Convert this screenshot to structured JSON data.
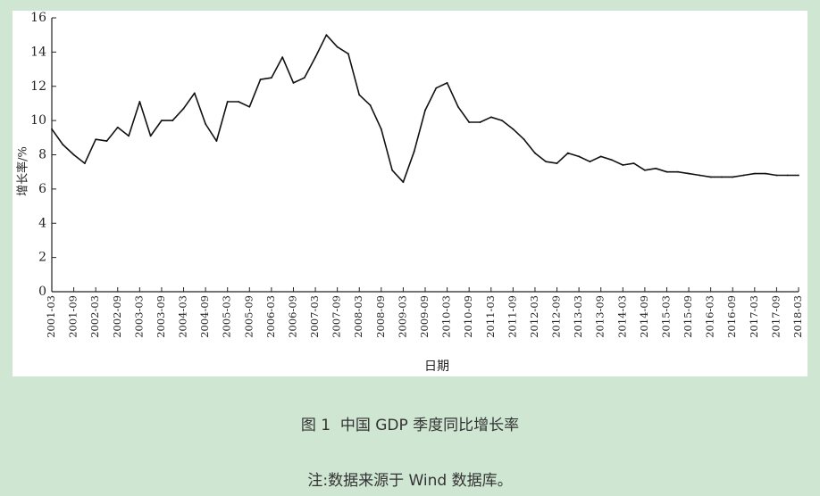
{
  "figure": {
    "caption": "图 1  中国 GDP 季度同比增长率",
    "note": "注:数据来源于 Wind 数据库。"
  },
  "chart_data": {
    "type": "line",
    "title": "",
    "xlabel": "日期",
    "ylabel": "增长率/%",
    "ylim": [
      0,
      16
    ],
    "yticks": [
      0,
      2,
      4,
      6,
      8,
      10,
      12,
      14,
      16
    ],
    "grid": false,
    "line_color": "#111111",
    "xtick_labels": [
      "2001-03",
      "2001-09",
      "2002-03",
      "2002-09",
      "2003-03",
      "2003-09",
      "2004-03",
      "2004-09",
      "2005-03",
      "2005-09",
      "2006-03",
      "2006-09",
      "2007-03",
      "2007-09",
      "2008-03",
      "2008-09",
      "2009-03",
      "2009-09",
      "2010-03",
      "2010-09",
      "2011-03",
      "2011-09",
      "2012-03",
      "2012-09",
      "2013-03",
      "2013-09",
      "2014-03",
      "2014-09",
      "2015-03",
      "2015-09",
      "2016-03",
      "2016-09",
      "2017-03",
      "2017-09",
      "2018-03"
    ],
    "series": [
      {
        "x": [
          "2001-03",
          "2001-06",
          "2001-09",
          "2001-12",
          "2002-03",
          "2002-06",
          "2002-09",
          "2002-12",
          "2003-03",
          "2003-06",
          "2003-09",
          "2003-12",
          "2004-03",
          "2004-06",
          "2004-09",
          "2004-12",
          "2005-03",
          "2005-06",
          "2005-09",
          "2005-12",
          "2006-03",
          "2006-06",
          "2006-09",
          "2006-12",
          "2007-03",
          "2007-06",
          "2007-09",
          "2007-12",
          "2008-03",
          "2008-06",
          "2008-09",
          "2008-12",
          "2009-03",
          "2009-06",
          "2009-09",
          "2009-12",
          "2010-03",
          "2010-06",
          "2010-09",
          "2010-12",
          "2011-03",
          "2011-06",
          "2011-09",
          "2011-12",
          "2012-03",
          "2012-06",
          "2012-09",
          "2012-12",
          "2013-03",
          "2013-06",
          "2013-09",
          "2013-12",
          "2014-03",
          "2014-06",
          "2014-09",
          "2014-12",
          "2015-03",
          "2015-06",
          "2015-09",
          "2015-12",
          "2016-03",
          "2016-06",
          "2016-09",
          "2016-12",
          "2017-03",
          "2017-06",
          "2017-09",
          "2017-12",
          "2018-03"
        ],
        "values": [
          9.5,
          8.6,
          8.0,
          7.5,
          8.9,
          8.8,
          9.6,
          9.1,
          11.1,
          9.1,
          10.0,
          10.0,
          10.7,
          11.6,
          9.8,
          8.8,
          11.1,
          11.1,
          10.8,
          12.4,
          12.5,
          13.7,
          12.2,
          12.5,
          13.7,
          15.0,
          14.3,
          13.9,
          11.5,
          10.9,
          9.5,
          7.1,
          6.4,
          8.2,
          10.6,
          11.9,
          12.2,
          10.8,
          9.9,
          9.9,
          10.2,
          10.0,
          9.5,
          8.9,
          8.1,
          7.6,
          7.5,
          8.1,
          7.9,
          7.6,
          7.9,
          7.7,
          7.4,
          7.5,
          7.1,
          7.2,
          7.0,
          7.0,
          6.9,
          6.8,
          6.7,
          6.7,
          6.7,
          6.8,
          6.9,
          6.9,
          6.8,
          6.8,
          6.8
        ]
      }
    ]
  }
}
